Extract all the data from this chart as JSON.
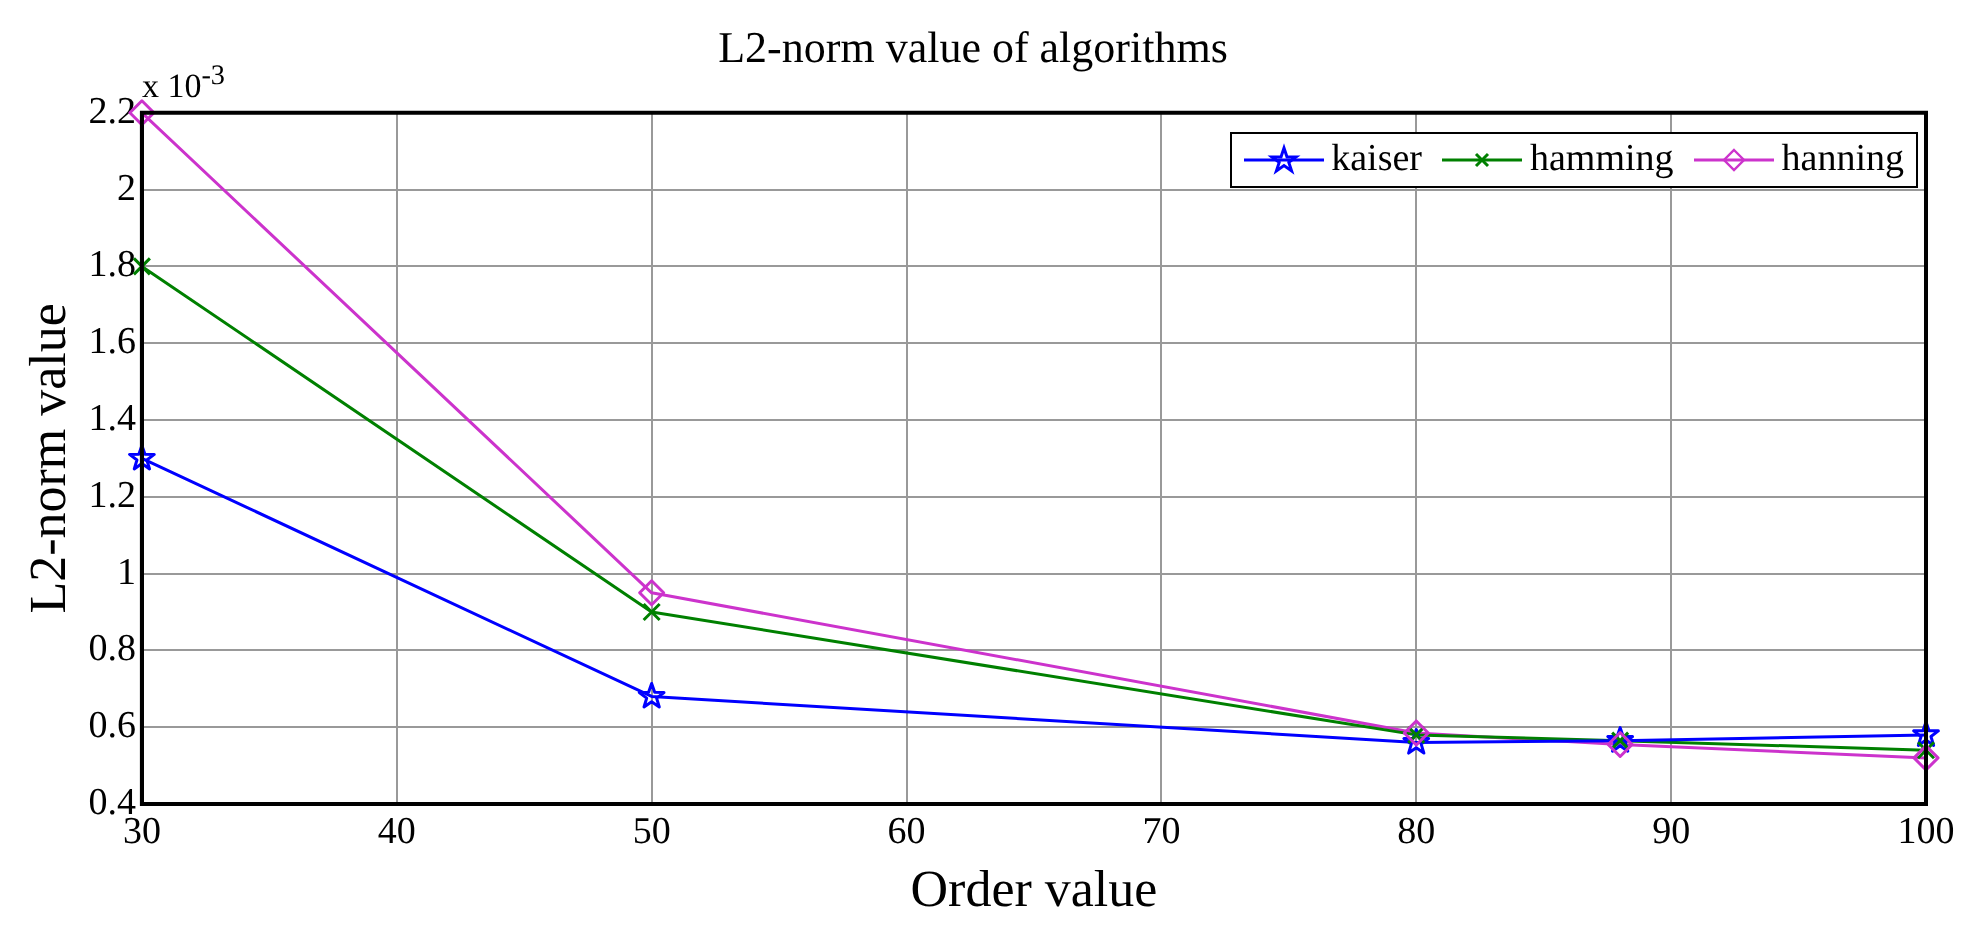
{
  "chart_data": {
    "type": "line",
    "title": "L2-norm value of algorithms",
    "xlabel": "Order value",
    "ylabel": "L2-norm value",
    "annotations": [
      "x 10$^{-3}$"
    ],
    "x": [
      30,
      50,
      80,
      88,
      100
    ],
    "series": [
      {
        "name": "kaiser",
        "color": "#0000ff",
        "marker": "star",
        "values": [
          1.3,
          0.68,
          0.56,
          0.565,
          0.58
        ]
      },
      {
        "name": "hamming",
        "color": "#008000",
        "marker": "cross",
        "values": [
          1.8,
          0.9,
          0.58,
          0.565,
          0.54
        ]
      },
      {
        "name": "hanning",
        "color": "#cc33cc",
        "marker": "diamond",
        "values": [
          2.2,
          0.95,
          0.585,
          0.555,
          0.52
        ]
      }
    ],
    "xlim": [
      30,
      100
    ],
    "xticks": [
      30,
      40,
      50,
      60,
      70,
      80,
      90,
      100
    ],
    "ylim": [
      0.4,
      2.2
    ],
    "yticks": [
      0.4,
      0.6,
      0.8,
      1,
      1.2,
      1.4,
      1.6,
      1.8,
      2,
      2.2
    ],
    "grid": true,
    "legend": "top right",
    "line_style": "solid"
  }
}
